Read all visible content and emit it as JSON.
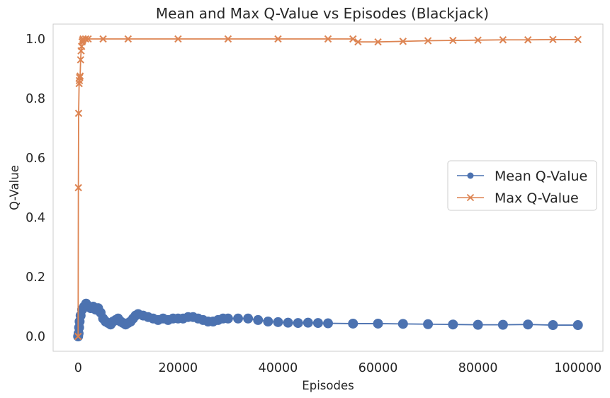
{
  "chart_data": {
    "type": "line",
    "title": "Mean and Max Q-Value vs Episodes (Blackjack)",
    "xlabel": "Episodes",
    "ylabel": "Q-Value",
    "xlim": [
      -5000,
      105000
    ],
    "ylim": [
      -0.05,
      1.05
    ],
    "xticks": [
      0,
      20000,
      40000,
      60000,
      80000,
      100000
    ],
    "xtick_labels": [
      "0",
      "20000",
      "40000",
      "60000",
      "80000",
      "100000"
    ],
    "yticks": [
      0.0,
      0.2,
      0.4,
      0.6,
      0.8,
      1.0
    ],
    "ytick_labels": [
      "0.0",
      "0.2",
      "0.4",
      "0.6",
      "0.8",
      "1.0"
    ],
    "grid": false,
    "legend_position": "center-right",
    "series": [
      {
        "name": "Mean Q-Value",
        "color": "#4c72b0",
        "marker": "circle",
        "points": [
          [
            0,
            0.0
          ],
          [
            100,
            0.01
          ],
          [
            200,
            0.03
          ],
          [
            300,
            0.05
          ],
          [
            500,
            0.07
          ],
          [
            800,
            0.09
          ],
          [
            1200,
            0.1
          ],
          [
            1600,
            0.11
          ],
          [
            2000,
            0.1
          ],
          [
            2500,
            0.095
          ],
          [
            3000,
            0.1
          ],
          [
            3500,
            0.09
          ],
          [
            4000,
            0.095
          ],
          [
            4500,
            0.08
          ],
          [
            5000,
            0.06
          ],
          [
            5500,
            0.05
          ],
          [
            6000,
            0.045
          ],
          [
            6500,
            0.04
          ],
          [
            7000,
            0.05
          ],
          [
            7500,
            0.055
          ],
          [
            8000,
            0.06
          ],
          [
            8500,
            0.05
          ],
          [
            9000,
            0.045
          ],
          [
            9500,
            0.04
          ],
          [
            10000,
            0.045
          ],
          [
            10500,
            0.05
          ],
          [
            11000,
            0.06
          ],
          [
            11500,
            0.07
          ],
          [
            12000,
            0.075
          ],
          [
            13000,
            0.07
          ],
          [
            14000,
            0.065
          ],
          [
            15000,
            0.06
          ],
          [
            16000,
            0.055
          ],
          [
            17000,
            0.06
          ],
          [
            18000,
            0.055
          ],
          [
            19000,
            0.06
          ],
          [
            20000,
            0.06
          ],
          [
            21000,
            0.06
          ],
          [
            22000,
            0.065
          ],
          [
            23000,
            0.065
          ],
          [
            24000,
            0.06
          ],
          [
            25000,
            0.055
          ],
          [
            26000,
            0.05
          ],
          [
            27000,
            0.05
          ],
          [
            28000,
            0.055
          ],
          [
            29000,
            0.06
          ],
          [
            30000,
            0.06
          ],
          [
            32000,
            0.06
          ],
          [
            34000,
            0.06
          ],
          [
            36000,
            0.055
          ],
          [
            38000,
            0.05
          ],
          [
            40000,
            0.048
          ],
          [
            42000,
            0.046
          ],
          [
            44000,
            0.045
          ],
          [
            46000,
            0.046
          ],
          [
            48000,
            0.045
          ],
          [
            50000,
            0.044
          ],
          [
            55000,
            0.043
          ],
          [
            60000,
            0.043
          ],
          [
            65000,
            0.042
          ],
          [
            70000,
            0.041
          ],
          [
            75000,
            0.04
          ],
          [
            80000,
            0.039
          ],
          [
            85000,
            0.039
          ],
          [
            90000,
            0.04
          ],
          [
            95000,
            0.038
          ],
          [
            100000,
            0.038
          ]
        ]
      },
      {
        "name": "Max Q-Value",
        "color": "#dd8452",
        "marker": "x",
        "points": [
          [
            0,
            0.0
          ],
          [
            50,
            0.5
          ],
          [
            100,
            0.75
          ],
          [
            200,
            0.85
          ],
          [
            250,
            0.86
          ],
          [
            300,
            0.87
          ],
          [
            400,
            0.875
          ],
          [
            500,
            0.93
          ],
          [
            600,
            0.96
          ],
          [
            700,
            0.975
          ],
          [
            800,
            0.99
          ],
          [
            900,
            0.995
          ],
          [
            1000,
            1.0
          ],
          [
            1500,
            1.0
          ],
          [
            2000,
            1.0
          ],
          [
            5000,
            1.0
          ],
          [
            10000,
            1.0
          ],
          [
            20000,
            1.0
          ],
          [
            30000,
            1.0
          ],
          [
            40000,
            1.0
          ],
          [
            50000,
            1.0
          ],
          [
            55000,
            1.0
          ],
          [
            56000,
            0.99
          ],
          [
            60000,
            0.99
          ],
          [
            65000,
            0.992
          ],
          [
            70000,
            0.994
          ],
          [
            75000,
            0.995
          ],
          [
            80000,
            0.996
          ],
          [
            85000,
            0.997
          ],
          [
            90000,
            0.997
          ],
          [
            95000,
            0.998
          ],
          [
            100000,
            0.998
          ]
        ]
      }
    ]
  }
}
